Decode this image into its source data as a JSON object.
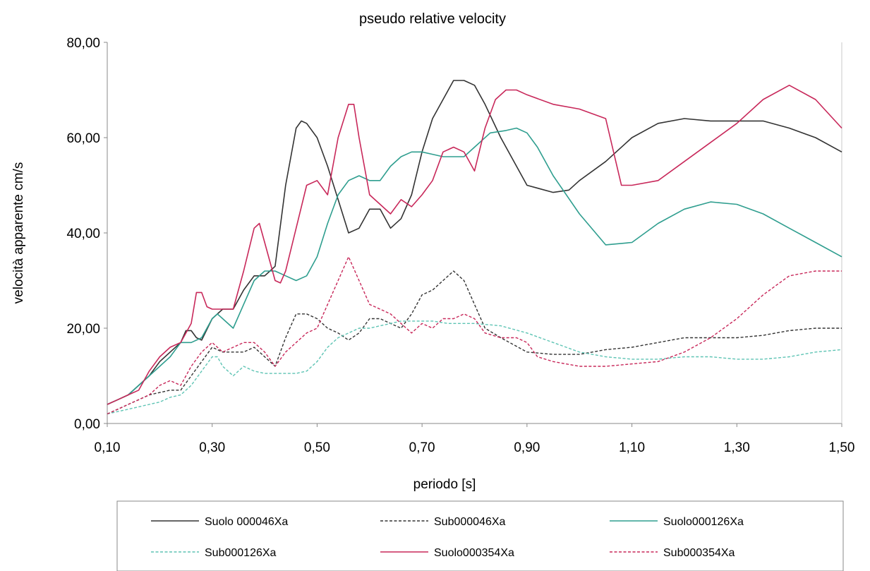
{
  "chart_data": {
    "type": "line",
    "title": "pseudo relative velocity",
    "xlabel": "periodo  [s]",
    "ylabel": "velocità  apparente  cm/s",
    "xlim": [
      0.1,
      1.5
    ],
    "ylim": [
      0,
      80
    ],
    "xticks": [
      0.1,
      0.3,
      0.5,
      0.7,
      0.9,
      1.1,
      1.3,
      1.5
    ],
    "xtick_labels": [
      "0,10",
      "0,30",
      "0,50",
      "0,70",
      "0,90",
      "1,10",
      "1,30",
      "1,50"
    ],
    "yticks": [
      0,
      20,
      40,
      60,
      80
    ],
    "ytick_labels": [
      "0,00",
      "20,00",
      "40,00",
      "60,00",
      "80,00"
    ],
    "grid": false,
    "legend_placement": "bottom",
    "series": [
      {
        "name": "Suolo 000046Xa",
        "color": "#333333",
        "style": "solid",
        "x": [
          0.1,
          0.12,
          0.14,
          0.16,
          0.18,
          0.2,
          0.22,
          0.24,
          0.25,
          0.26,
          0.27,
          0.28,
          0.3,
          0.32,
          0.34,
          0.36,
          0.38,
          0.4,
          0.42,
          0.44,
          0.46,
          0.47,
          0.48,
          0.5,
          0.52,
          0.54,
          0.56,
          0.58,
          0.6,
          0.62,
          0.64,
          0.66,
          0.68,
          0.7,
          0.72,
          0.74,
          0.76,
          0.78,
          0.8,
          0.82,
          0.85,
          0.9,
          0.95,
          0.98,
          1.0,
          1.05,
          1.1,
          1.15,
          1.2,
          1.25,
          1.3,
          1.35,
          1.4,
          1.45,
          1.5
        ],
        "y": [
          4,
          5,
          6,
          8,
          10,
          13,
          15,
          17,
          19.5,
          19.5,
          18,
          17.5,
          22,
          24,
          24,
          28,
          31,
          31,
          33,
          50,
          62,
          63.5,
          63,
          60,
          54,
          47,
          40,
          41,
          45,
          45,
          41,
          43,
          48,
          57,
          64,
          68,
          72,
          72,
          71,
          67,
          60,
          50,
          48.5,
          49,
          51,
          55,
          60,
          63,
          64,
          63.5,
          63.5,
          63.5,
          62,
          60,
          57
        ]
      },
      {
        "name": "Sub000046Xa",
        "color": "#333333",
        "style": "dashed",
        "x": [
          0.1,
          0.12,
          0.14,
          0.16,
          0.18,
          0.2,
          0.22,
          0.24,
          0.26,
          0.28,
          0.3,
          0.32,
          0.34,
          0.36,
          0.38,
          0.4,
          0.42,
          0.44,
          0.46,
          0.48,
          0.5,
          0.52,
          0.54,
          0.56,
          0.58,
          0.6,
          0.62,
          0.64,
          0.66,
          0.68,
          0.7,
          0.72,
          0.74,
          0.76,
          0.78,
          0.8,
          0.82,
          0.85,
          0.9,
          0.95,
          1.0,
          1.05,
          1.1,
          1.15,
          1.2,
          1.25,
          1.3,
          1.35,
          1.4,
          1.45,
          1.5
        ],
        "y": [
          2,
          3,
          4,
          5,
          6,
          6.5,
          7,
          7,
          10,
          13,
          16,
          15,
          15,
          15,
          16,
          14,
          12,
          18,
          23,
          23,
          22,
          20,
          19,
          17.5,
          19,
          22,
          22,
          21,
          20,
          23,
          27,
          28,
          30,
          32,
          30,
          25,
          20,
          18,
          15,
          14.5,
          14.5,
          15.5,
          16,
          17,
          18,
          18,
          18,
          18.5,
          19.5,
          20,
          20
        ]
      },
      {
        "name": "Suolo000126Xa",
        "color": "#2f9e8f",
        "style": "solid",
        "x": [
          0.1,
          0.12,
          0.14,
          0.16,
          0.18,
          0.2,
          0.22,
          0.24,
          0.26,
          0.28,
          0.3,
          0.31,
          0.32,
          0.34,
          0.36,
          0.38,
          0.4,
          0.42,
          0.44,
          0.46,
          0.48,
          0.5,
          0.52,
          0.54,
          0.56,
          0.58,
          0.6,
          0.62,
          0.64,
          0.66,
          0.68,
          0.7,
          0.72,
          0.74,
          0.76,
          0.78,
          0.8,
          0.83,
          0.86,
          0.88,
          0.9,
          0.92,
          0.95,
          1.0,
          1.05,
          1.1,
          1.15,
          1.2,
          1.25,
          1.3,
          1.35,
          1.4,
          1.45,
          1.5
        ],
        "y": [
          4,
          5,
          6,
          8,
          10,
          12,
          14,
          17,
          17,
          18,
          22,
          23,
          22,
          20,
          25,
          30,
          32,
          32,
          31,
          30,
          31,
          35,
          42,
          48,
          51,
          52,
          51,
          51,
          54,
          56,
          57,
          57,
          56.5,
          56,
          56,
          56,
          58,
          61,
          61.5,
          62,
          61,
          58,
          52,
          44,
          37.5,
          38,
          42,
          45,
          46.5,
          46,
          44,
          41,
          38,
          35
        ]
      },
      {
        "name": "Sub000126Xa",
        "color": "#5ec4b4",
        "style": "dashed",
        "x": [
          0.1,
          0.12,
          0.14,
          0.16,
          0.18,
          0.2,
          0.22,
          0.24,
          0.26,
          0.28,
          0.3,
          0.31,
          0.32,
          0.34,
          0.36,
          0.38,
          0.4,
          0.42,
          0.44,
          0.46,
          0.48,
          0.5,
          0.52,
          0.54,
          0.56,
          0.58,
          0.6,
          0.62,
          0.64,
          0.66,
          0.68,
          0.7,
          0.72,
          0.75,
          0.8,
          0.85,
          0.9,
          0.95,
          1.0,
          1.05,
          1.1,
          1.15,
          1.2,
          1.25,
          1.3,
          1.35,
          1.4,
          1.45,
          1.5
        ],
        "y": [
          2,
          2.5,
          3,
          3.5,
          4,
          4.5,
          5.5,
          6,
          8,
          11,
          14,
          14,
          12,
          10,
          12,
          11,
          10.5,
          10.5,
          10.5,
          10.5,
          11,
          13,
          16,
          18,
          19,
          20,
          20,
          20.5,
          21,
          21.5,
          21.5,
          21.5,
          21.5,
          21,
          21,
          20.5,
          19,
          17,
          15,
          14,
          13.5,
          13.5,
          14,
          14,
          13.5,
          13.5,
          14,
          15,
          15.5
        ]
      },
      {
        "name": "Suolo000354Xa",
        "color": "#c8285a",
        "style": "solid",
        "x": [
          0.1,
          0.12,
          0.14,
          0.16,
          0.18,
          0.2,
          0.22,
          0.24,
          0.26,
          0.27,
          0.28,
          0.29,
          0.3,
          0.32,
          0.34,
          0.36,
          0.38,
          0.39,
          0.4,
          0.42,
          0.43,
          0.44,
          0.46,
          0.48,
          0.5,
          0.52,
          0.54,
          0.56,
          0.57,
          0.58,
          0.6,
          0.62,
          0.64,
          0.66,
          0.68,
          0.7,
          0.72,
          0.74,
          0.76,
          0.78,
          0.8,
          0.82,
          0.84,
          0.86,
          0.88,
          0.9,
          0.95,
          1.0,
          1.05,
          1.08,
          1.1,
          1.15,
          1.2,
          1.25,
          1.3,
          1.35,
          1.4,
          1.45,
          1.5
        ],
        "y": [
          4,
          5,
          6,
          7,
          11,
          14,
          16,
          17,
          21,
          27.5,
          27.5,
          24.5,
          24,
          24,
          24,
          32,
          41,
          42,
          38,
          30,
          29.5,
          32,
          41,
          50,
          51,
          48,
          60,
          67,
          67,
          60,
          48,
          46,
          44,
          47,
          45.5,
          48,
          51,
          57,
          58,
          57,
          53,
          62,
          68,
          70,
          70,
          69,
          67,
          66,
          64,
          50,
          50,
          51,
          55,
          59,
          63,
          68,
          71,
          68,
          62
        ]
      },
      {
        "name": "Sub000354Xa",
        "color": "#c8285a",
        "style": "dashed",
        "x": [
          0.1,
          0.12,
          0.14,
          0.16,
          0.18,
          0.2,
          0.22,
          0.24,
          0.26,
          0.28,
          0.3,
          0.32,
          0.34,
          0.36,
          0.38,
          0.4,
          0.42,
          0.44,
          0.46,
          0.48,
          0.5,
          0.52,
          0.54,
          0.56,
          0.58,
          0.6,
          0.62,
          0.64,
          0.66,
          0.68,
          0.7,
          0.72,
          0.74,
          0.76,
          0.78,
          0.8,
          0.82,
          0.85,
          0.88,
          0.9,
          0.92,
          0.95,
          1.0,
          1.05,
          1.1,
          1.15,
          1.2,
          1.25,
          1.3,
          1.35,
          1.4,
          1.45,
          1.5
        ],
        "y": [
          2,
          3,
          4,
          5,
          6,
          8,
          9,
          8,
          12,
          15,
          17,
          15,
          16,
          17,
          17,
          15,
          12,
          15,
          17,
          19,
          20,
          25,
          30,
          35,
          30,
          25,
          24,
          23,
          21,
          19,
          21,
          20,
          22,
          22,
          23,
          22,
          19,
          18,
          18,
          17,
          14,
          13,
          12,
          12,
          12.5,
          13,
          15,
          18,
          22,
          27,
          31,
          32,
          32
        ]
      }
    ]
  }
}
